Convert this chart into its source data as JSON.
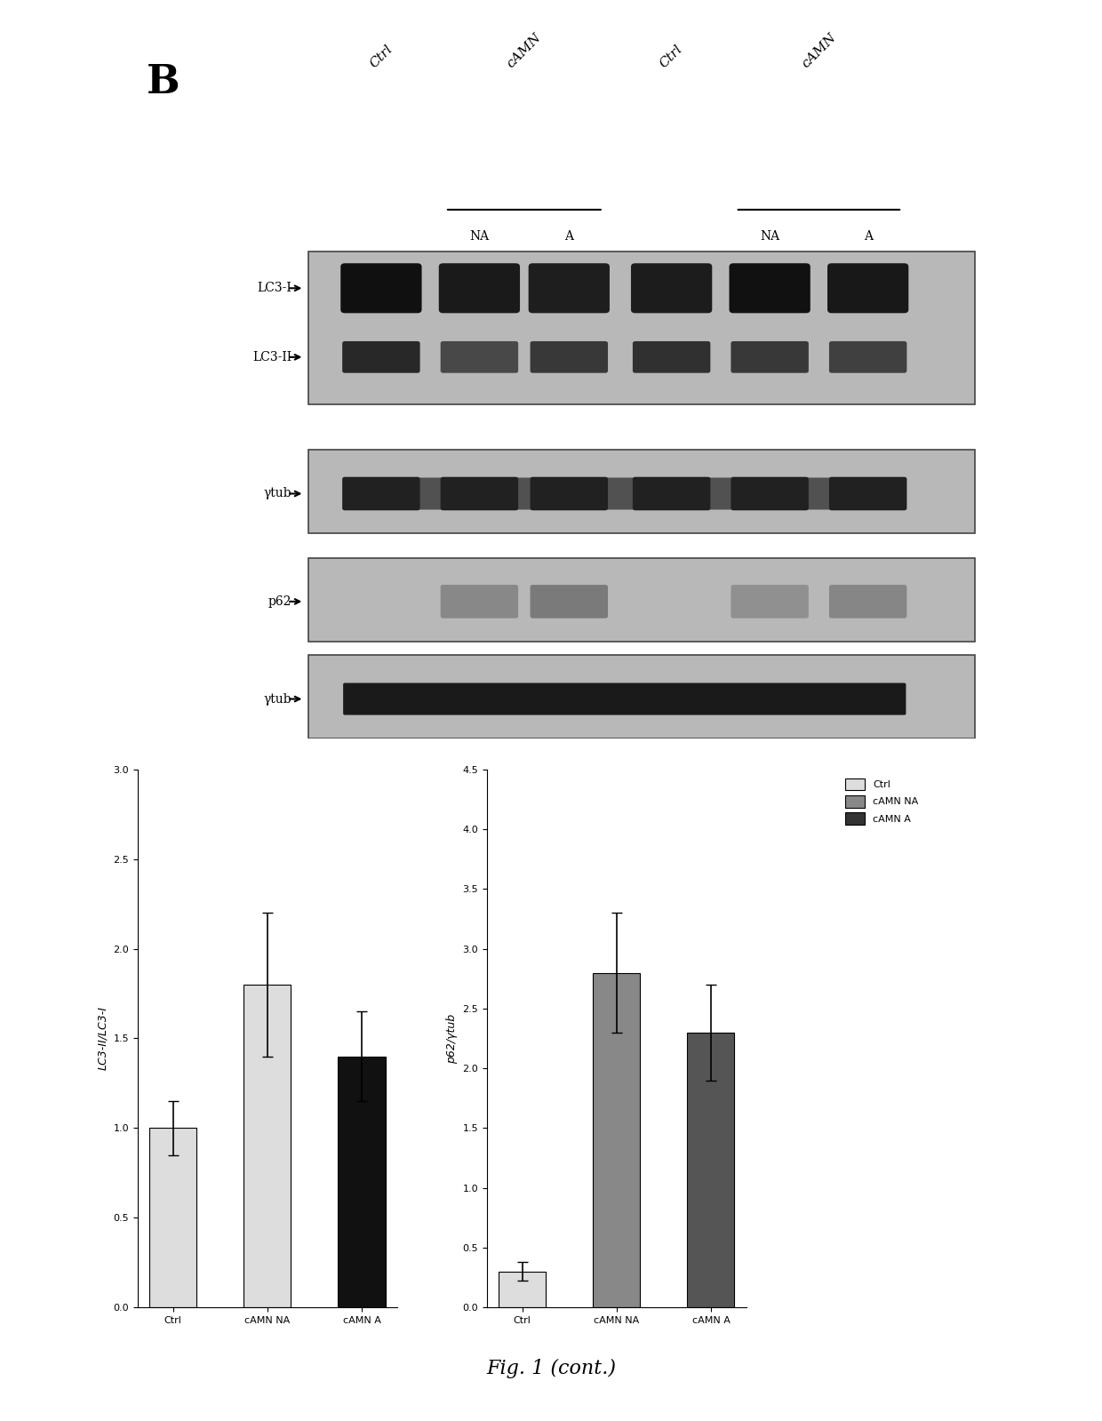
{
  "background_color": "#ffffff",
  "panel_b_label": "B",
  "figure_caption": "Fig. 1 (cont.)",
  "wb_panel": {
    "column_labels_top": [
      "Ctrl",
      "cAMN",
      "",
      "Ctrl",
      "cAMN"
    ],
    "subgroup_labels": [
      "NA",
      "A",
      "NA",
      "A"
    ],
    "row_labels": [
      "LC3-I",
      "LC3-II",
      "γtub",
      "p62",
      "γtub"
    ],
    "blot_bg": "#c8c8c8",
    "band_color_dark": "#1a1a1a",
    "band_color_mid": "#555555",
    "band_color_light": "#888888"
  },
  "bar_chart_left": {
    "title": "",
    "ylabel": "LC3-II/LC3-I",
    "groups": [
      "Ctrl",
      "cAMN NA",
      "cAMN A"
    ],
    "values": [
      1.0,
      1.8,
      1.4
    ],
    "errors": [
      0.15,
      0.4,
      0.25
    ],
    "colors": [
      "#dddddd",
      "#dddddd",
      "#111111"
    ],
    "bar_width": 0.5,
    "ylim": [
      0,
      3.0
    ]
  },
  "bar_chart_right": {
    "title": "",
    "ylabel": "p62/γtub",
    "groups": [
      "Ctrl",
      "cAMN NA",
      "cAMN A"
    ],
    "values": [
      0.3,
      2.8,
      2.3
    ],
    "errors": [
      0.08,
      0.5,
      0.4
    ],
    "colors": [
      "#dddddd",
      "#888888",
      "#555555"
    ],
    "bar_width": 0.5,
    "ylim": [
      0,
      4.5
    ]
  },
  "legend_items": [
    {
      "label": "Ctrl",
      "color": "#dddddd"
    },
    {
      "label": "cAMN NA",
      "color": "#888888"
    },
    {
      "label": "cAMN A",
      "color": "#333333"
    }
  ]
}
